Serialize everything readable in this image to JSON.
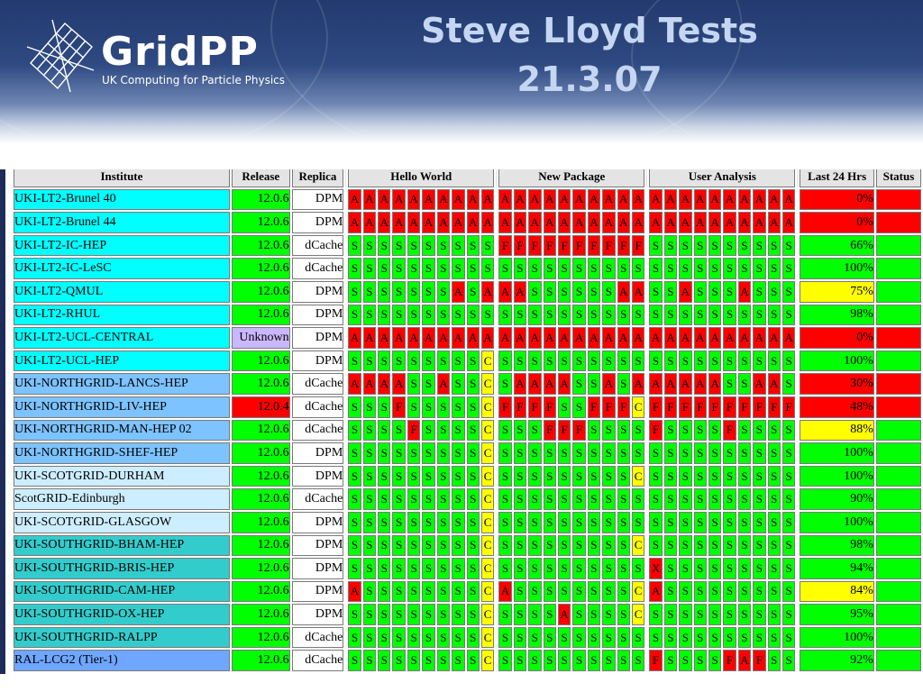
{
  "logo": {
    "name": "GridPP",
    "subtitle": "UK Computing for Particle Physics"
  },
  "title": {
    "line1": "Steve Lloyd Tests",
    "line2": "21.3.07"
  },
  "colors": {
    "S": "#00ff00",
    "A": "#ff0000",
    "F": "#ff0000",
    "X": "#ff0000",
    "C": "#ffff00",
    "cyan": "#00ffff",
    "blue": "#7cc3ff",
    "lblue": "#cdeeff",
    "teal": "#33cccc",
    "royal": "#6fa6ff",
    "green": "#00ff00",
    "red": "#ff0000",
    "yellow": "#ffff00",
    "lilac": "#c9b8ff"
  },
  "table": {
    "headers": {
      "institute": "Institute",
      "release": "Release",
      "replica": "Replica",
      "hello": "Hello World",
      "newpkg": "New Package",
      "user": "User Analysis",
      "last24": "Last 24 Hrs",
      "status": "Status"
    },
    "rows": [
      {
        "inst": "UKI-LT2-Brunel 40",
        "ibg": "cyan",
        "rel": "12.0.6",
        "rbg": "green",
        "rep": "DPM",
        "hw": "AAAAAAAAAA",
        "np": "AAAAAAAAAA",
        "ua": "AAAAAAAAAA",
        "last": "0%",
        "lbg": "red",
        "sbg": "red"
      },
      {
        "inst": "UKI-LT2-Brunel 44",
        "ibg": "cyan",
        "rel": "12.0.6",
        "rbg": "green",
        "rep": "DPM",
        "hw": "AAAAAAAAAA",
        "np": "AAAAAAAAAA",
        "ua": "AAAAAAAAAA",
        "last": "0%",
        "lbg": "red",
        "sbg": "red"
      },
      {
        "inst": "UKI-LT2-IC-HEP",
        "ibg": "cyan",
        "rel": "12.0.6",
        "rbg": "green",
        "rep": "dCache",
        "hw": "SSSSSSSSSS",
        "np": "FFFFFFFFFF",
        "ua": "SSSSSSSSSS",
        "last": "66%",
        "lbg": "green",
        "sbg": "green"
      },
      {
        "inst": "UKI-LT2-IC-LeSC",
        "ibg": "cyan",
        "rel": "12.0.6",
        "rbg": "green",
        "rep": "dCache",
        "hw": "SSSSSSSSSS",
        "np": "SSSSSSSSSS",
        "ua": "SSSSSSSSSS",
        "last": "100%",
        "lbg": "green",
        "sbg": "green"
      },
      {
        "inst": "UKI-LT2-QMUL",
        "ibg": "cyan",
        "rel": "12.0.6",
        "rbg": "green",
        "rep": "DPM",
        "hw": "SSSSSSSASA",
        "np": "AASSSSSSAA",
        "ua": "SSASSSASSS",
        "last": "75%",
        "lbg": "yellow",
        "sbg": "green"
      },
      {
        "inst": "UKI-LT2-RHUL",
        "ibg": "cyan",
        "rel": "12.0.6",
        "rbg": "green",
        "rep": "DPM",
        "hw": "SSSSSSSSSS",
        "np": "SSSSSSSSSS",
        "ua": "SSSSSSSSSS",
        "last": "98%",
        "lbg": "green",
        "sbg": "green"
      },
      {
        "inst": "UKI-LT2-UCL-CENTRAL",
        "ibg": "cyan",
        "rel": "Unknown",
        "rbg": "lilac",
        "rep": "DPM",
        "hw": "AAAAAAAAAA",
        "np": "AAAAAAAAAA",
        "ua": "AAAAAAAAAA",
        "last": "0%",
        "lbg": "red",
        "sbg": "red"
      },
      {
        "inst": "UKI-LT2-UCL-HEP",
        "ibg": "cyan",
        "rel": "12.0.6",
        "rbg": "green",
        "rep": "DPM",
        "hw": "SSSSSSSSSC",
        "np": "SSSSSSSSSS",
        "ua": "SSSSSSSSSS",
        "last": "100%",
        "lbg": "green",
        "sbg": "green"
      },
      {
        "inst": "UKI-NORTHGRID-LANCS-HEP",
        "ibg": "blue",
        "rel": "12.0.6",
        "rbg": "green",
        "rep": "dCache",
        "hw": "AAAASSASSC",
        "np": "SAAAASSASA",
        "ua": "AAAAASSAAS",
        "last": "30%",
        "lbg": "red",
        "sbg": "red"
      },
      {
        "inst": "UKI-NORTHGRID-LIV-HEP",
        "ibg": "blue",
        "rel": "12.0.4",
        "rbg": "red",
        "rep": "dCache",
        "hw": "SSSFSSSSSC",
        "np": "FFFFSSFFFC",
        "ua": "FFFFFFFFFF",
        "last": "48%",
        "lbg": "red",
        "sbg": "red"
      },
      {
        "inst": "UKI-NORTHGRID-MAN-HEP 02",
        "ibg": "blue",
        "rel": "12.0.6",
        "rbg": "green",
        "rep": "dCache",
        "hw": "SSSSFSSSSC",
        "np": "SSSFFFSSSS",
        "ua": "FSSSSFSSSS",
        "last": "88%",
        "lbg": "yellow",
        "sbg": "green"
      },
      {
        "inst": "UKI-NORTHGRID-SHEF-HEP",
        "ibg": "blue",
        "rel": "12.0.6",
        "rbg": "green",
        "rep": "DPM",
        "hw": "SSSSSSSSSC",
        "np": "SSSSSSSSSS",
        "ua": "SSSSSSSSSS",
        "last": "100%",
        "lbg": "green",
        "sbg": "green"
      },
      {
        "inst": "UKI-SCOTGRID-DURHAM",
        "ibg": "lblue",
        "rel": "12.0.6",
        "rbg": "green",
        "rep": "DPM",
        "hw": "SSSSSSSSSC",
        "np": "SSSSSSSSSC",
        "ua": "SSSSSSSSSS",
        "last": "100%",
        "lbg": "green",
        "sbg": "green"
      },
      {
        "inst": "ScotGRID-Edinburgh",
        "ibg": "lblue",
        "rel": "12.0.6",
        "rbg": "green",
        "rep": "dCache",
        "hw": "SSSSSSSSSC",
        "np": "SSSSSSSSSS",
        "ua": "SSSSSSSSSS",
        "last": "90%",
        "lbg": "green",
        "sbg": "green"
      },
      {
        "inst": "UKI-SCOTGRID-GLASGOW",
        "ibg": "lblue",
        "rel": "12.0.6",
        "rbg": "green",
        "rep": "DPM",
        "hw": "SSSSSSSSSC",
        "np": "SSSSSSSSSS",
        "ua": "SSSSSSSSSS",
        "last": "100%",
        "lbg": "green",
        "sbg": "green"
      },
      {
        "inst": "UKI-SOUTHGRID-BHAM-HEP",
        "ibg": "teal",
        "rel": "12.0.6",
        "rbg": "green",
        "rep": "DPM",
        "hw": "SSSSSSSSSC",
        "np": "SSSSSSSSSC",
        "ua": "SSSSSSSSSS",
        "last": "98%",
        "lbg": "green",
        "sbg": "green"
      },
      {
        "inst": "UKI-SOUTHGRID-BRIS-HEP",
        "ibg": "teal",
        "rel": "12.0.6",
        "rbg": "green",
        "rep": "DPM",
        "hw": "SSSSSSSSSC",
        "np": "SSSSSSSSSS",
        "ua": "XSSSSSSSSS",
        "last": "94%",
        "lbg": "green",
        "sbg": "green"
      },
      {
        "inst": "UKI-SOUTHGRID-CAM-HEP",
        "ibg": "teal",
        "rel": "12.0.6",
        "rbg": "green",
        "rep": "DPM",
        "hw": "ASSSSSSSSC",
        "np": "ASSSSSSSSC",
        "ua": "ASSSSSSSSS",
        "last": "84%",
        "lbg": "yellow",
        "sbg": "green"
      },
      {
        "inst": "UKI-SOUTHGRID-OX-HEP",
        "ibg": "teal",
        "rel": "12.0.6",
        "rbg": "green",
        "rep": "DPM",
        "hw": "SSSSSSSSSC",
        "np": "SSSSASSSSC",
        "ua": "SSSSSSSSSS",
        "last": "95%",
        "lbg": "green",
        "sbg": "green"
      },
      {
        "inst": "UKI-SOUTHGRID-RALPP",
        "ibg": "teal",
        "rel": "12.0.6",
        "rbg": "green",
        "rep": "dCache",
        "hw": "SSSSSSSSSC",
        "np": "SSSSSSSSSS",
        "ua": "SSSSSSSSSS",
        "last": "100%",
        "lbg": "green",
        "sbg": "green"
      },
      {
        "inst": "RAL-LCG2 (Tier-1)",
        "ibg": "royal",
        "rel": "12.0.6",
        "rbg": "green",
        "rep": "dCache",
        "hw": "SSSSSSSSSC",
        "np": "SSSSSSSSSS",
        "ua": "FSSSSFAFSS",
        "last": "92%",
        "lbg": "green",
        "sbg": "green"
      }
    ]
  }
}
